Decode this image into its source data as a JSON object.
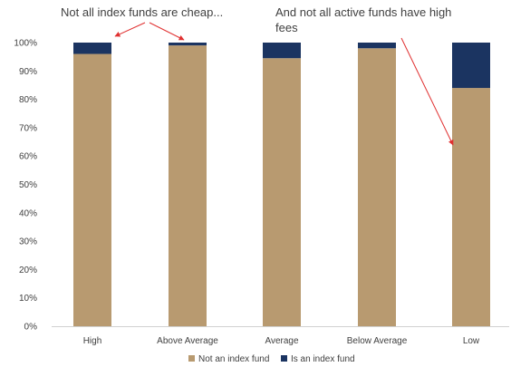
{
  "chart_data": {
    "type": "bar",
    "stacked": true,
    "categories": [
      "High",
      "Above Average",
      "Average",
      "Below Average",
      "Low"
    ],
    "series": [
      {
        "name": "Not an index fund",
        "values": [
          96,
          99,
          94.5,
          98,
          84
        ],
        "color": "#B89A70"
      },
      {
        "name": "Is an index fund",
        "values": [
          4,
          1,
          5.5,
          2,
          16
        ],
        "color": "#1B3461"
      }
    ],
    "ylim": [
      0,
      100
    ],
    "yticks": [
      "0%",
      "10%",
      "20%",
      "30%",
      "40%",
      "50%",
      "60%",
      "70%",
      "80%",
      "90%",
      "100%"
    ],
    "grid": false,
    "legend_position": "bottom",
    "annotations": [
      {
        "text": "Not all index funds are cheap..."
      },
      {
        "text": "And not all active funds have high fees"
      }
    ],
    "arrow_color": "#E03030"
  }
}
